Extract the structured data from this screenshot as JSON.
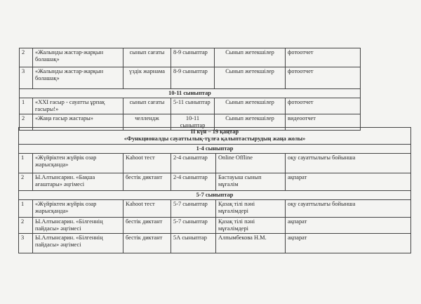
{
  "top_table": {
    "rows": [
      {
        "type": "row",
        "cells": [
          "2",
          "«Жалынды жастар-жарқын болашақ»",
          "сынып сағаты",
          "8-9 сыныптар",
          "Сынып  жетекшілер",
          "фотоотчет"
        ],
        "height": 27
      },
      {
        "type": "row",
        "cells": [
          "3",
          "«Жалынды жастар-жарқын болашақ»",
          "үздік жарнама",
          "8-9 сыныптар",
          "Сынып  жетекшілер",
          "фотоотчет"
        ],
        "height": 31
      },
      {
        "type": "header",
        "lines": [
          "10-11 сыныптар"
        ],
        "height": 13
      },
      {
        "type": "row",
        "cells": [
          "1",
          "«XXI ғасыр - сауатты ұрпақ ғасыры!»",
          "сынып сағаты",
          "5-11 сыныптар",
          "Сынып  жетекшілер",
          "фотоотчет"
        ],
        "height": 21
      },
      {
        "type": "row",
        "cells": [
          "2",
          "«Жаңа ғасыр жастары»",
          "челлендж",
          "10-11 сыныптар",
          "Сынып  жетекшілер",
          "видеоотчет"
        ],
        "height": 21
      }
    ]
  },
  "bottom_table": {
    "rows": [
      {
        "type": "header",
        "lines": [
          "II күн – 19 қаңтар",
          "«Функционалды сауаттылық-тұлға қалыптастырудың жаңа жолы»"
        ],
        "height": 24
      },
      {
        "type": "header",
        "lines": [
          "1-4 сыныптар"
        ],
        "height": 12
      },
      {
        "type": "row",
        "cells": [
          "1",
          "«Жүйріктен жүйрік озар жарысқанда»",
          "Kahoot тест",
          "2-4 сыныптар",
          "Online Offline",
          "оқу сауаттылығы бойынша"
        ],
        "height": 28
      },
      {
        "type": "row",
        "cells": [
          "2",
          "Ы.Алтынсарин. «Бақша ағаштары» әңгімесі",
          "бестік диктант",
          "2-4 сыныптар",
          "Бастауыш сынып мұғалім",
          "ақпарат"
        ],
        "height": 25
      },
      {
        "type": "header",
        "lines": [
          "5-7 сыныптар"
        ],
        "height": 12
      },
      {
        "type": "row",
        "cells": [
          "1",
          "«Жүйріктен жүйрік озар жарысқанда»",
          "Kahoot тест",
          "5-7 сыныптар",
          "Қазақ тілі пәні мұғалімдері",
          "оқу сауаттылығы бойынша"
        ],
        "height": 25
      },
      {
        "type": "row",
        "cells": [
          "2",
          "Ы.Алтынсарин. «Білгеннің пайдасы» әңгімесі",
          "бестік диктант",
          "5-7 сыныптар",
          "Қазақ тілі пәні мұғалімдері",
          "ақпарат"
        ],
        "height": 23
      },
      {
        "type": "row",
        "cells": [
          "3",
          "Ы.Алтынсарин. «Білгеннің пайдасы» әңгімесі",
          "бестік диктант",
          "5А сыныптар",
          "Алпымбекова Н.М.",
          "ақпарат"
        ],
        "height": 28
      }
    ]
  }
}
